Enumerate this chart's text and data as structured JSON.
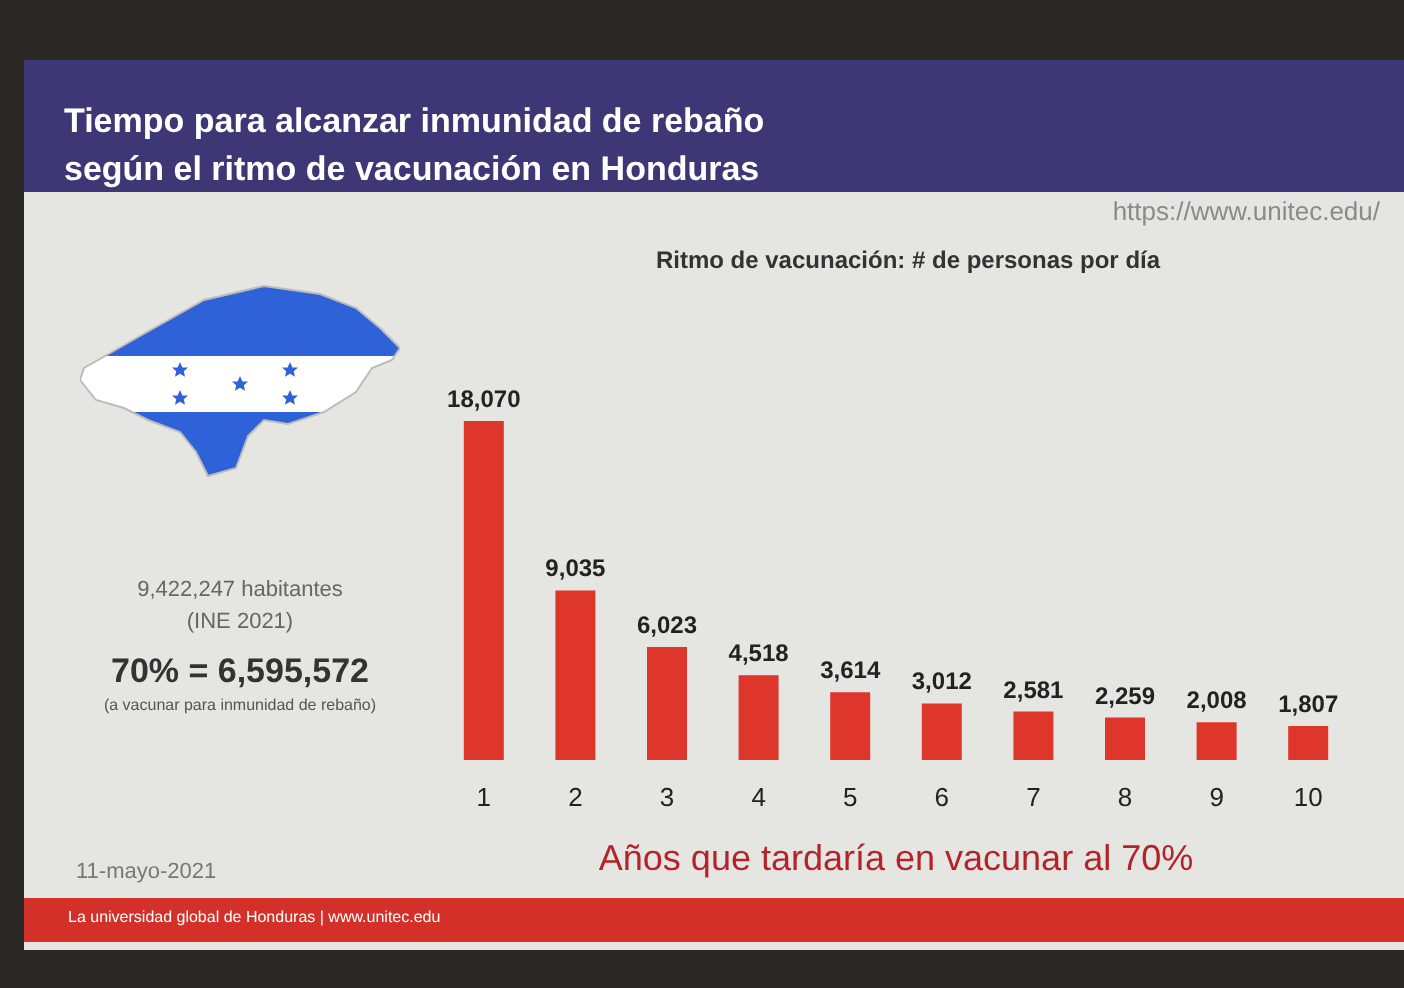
{
  "chart_data": {
    "type": "bar",
    "title": "Tiempo para alcanzar inmunidad de rebaño\nsegún el ritmo de vacunación en Honduras",
    "xlabel": "Años que tardaría en vacunar al 70%",
    "categories": [
      "1",
      "2",
      "3",
      "4",
      "5",
      "6",
      "7",
      "8",
      "9",
      "10"
    ],
    "values": [
      18070,
      9035,
      6023,
      4518,
      3614,
      3012,
      2581,
      2259,
      2008,
      1807
    ],
    "color": "#df362c",
    "value_labels": [
      "18,070",
      "9,035",
      "6,023",
      "4,518",
      "3,614",
      "3,012",
      "2,581",
      "2,259",
      "2,008",
      "1,807"
    ],
    "annotations": [
      "https://www.unitec.edu/",
      "Ritmo de vacunación: # de personas por día",
      "9,422,247 habitantes",
      "(INE 2021)",
      "70% = 6,595,572",
      "(a vacunar para inmunidad de rebaño)",
      "11-mayo-2021",
      "La universidad global de Honduras | www.unitec.edu"
    ]
  }
}
